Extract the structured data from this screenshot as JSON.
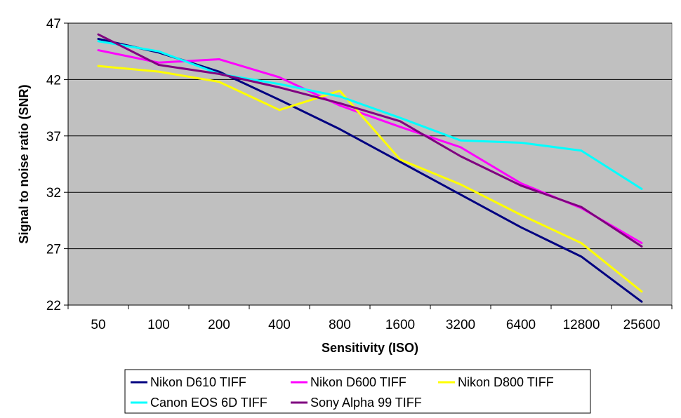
{
  "chart_data": {
    "type": "line",
    "title": "",
    "xlabel": "Sensitivity (ISO)",
    "ylabel": "Signal to noise ratio (SNR)",
    "categories": [
      "50",
      "100",
      "200",
      "400",
      "800",
      "1600",
      "3200",
      "6400",
      "12800",
      "25600"
    ],
    "ylim": [
      22,
      47
    ],
    "yticks": [
      22,
      27,
      32,
      37,
      42,
      47
    ],
    "grid": "horizontal",
    "plot_background": "#c0c0c0",
    "legend_position": "bottom",
    "series": [
      {
        "name": "Nikon D610 TIFF",
        "color": "#000080",
        "values": [
          45.6,
          44.4,
          42.7,
          40.2,
          37.6,
          34.7,
          31.8,
          28.9,
          26.3,
          22.3
        ]
      },
      {
        "name": "Nikon D600 TIFF",
        "color": "#ff00ff",
        "values": [
          44.6,
          43.5,
          43.8,
          42.2,
          39.7,
          37.8,
          36.0,
          32.8,
          30.6,
          27.5
        ]
      },
      {
        "name": "Nikon D800 TIFF",
        "color": "#ffff00",
        "values": [
          43.2,
          42.7,
          41.8,
          39.3,
          41.0,
          34.9,
          32.7,
          30.0,
          27.5,
          23.2
        ]
      },
      {
        "name": "Canon EOS 6D TIFF",
        "color": "#00ffff",
        "values": [
          45.4,
          44.5,
          42.5,
          41.6,
          40.5,
          38.6,
          36.6,
          36.4,
          35.7,
          32.3
        ]
      },
      {
        "name": "Sony Alpha 99 TIFF",
        "color": "#800080",
        "values": [
          46.0,
          43.3,
          42.5,
          41.3,
          39.9,
          38.3,
          35.2,
          32.6,
          30.7,
          27.2
        ]
      }
    ]
  }
}
